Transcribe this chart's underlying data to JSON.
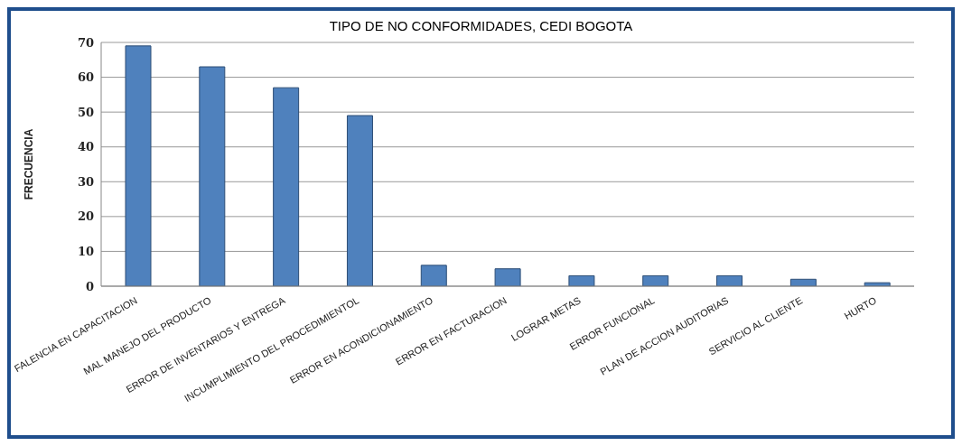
{
  "chart_data": {
    "type": "bar",
    "title": "TIPO DE NO CONFORMIDADES, CEDI BOGOTA",
    "ylabel": "FRECUENCIA",
    "categories": [
      "FALENCIA EN CAPACITACION",
      "MAL MANEJO DEL PRODUCTO",
      "ERROR DE INVENTARIOS  Y ENTREGA",
      "INCUMPLIMIENTO  DEL PROCEDIMIENTOL",
      "ERROR EN ACONDICIONAMIENTO",
      "ERROR EN FACTURACION",
      "LOGRAR METAS",
      "ERROR FUNCIONAL",
      "PLAN DE ACCION AUDITORIAS",
      "SERVICIO AL CLIENTE",
      "HURTO"
    ],
    "values": [
      69,
      63,
      57,
      49,
      6,
      5,
      3,
      3,
      3,
      2,
      1
    ],
    "color": "#4f81bd",
    "ylim": [
      0,
      70
    ],
    "yticks": [
      0,
      10,
      20,
      30,
      40,
      50,
      60,
      70
    ],
    "grid": "y"
  }
}
